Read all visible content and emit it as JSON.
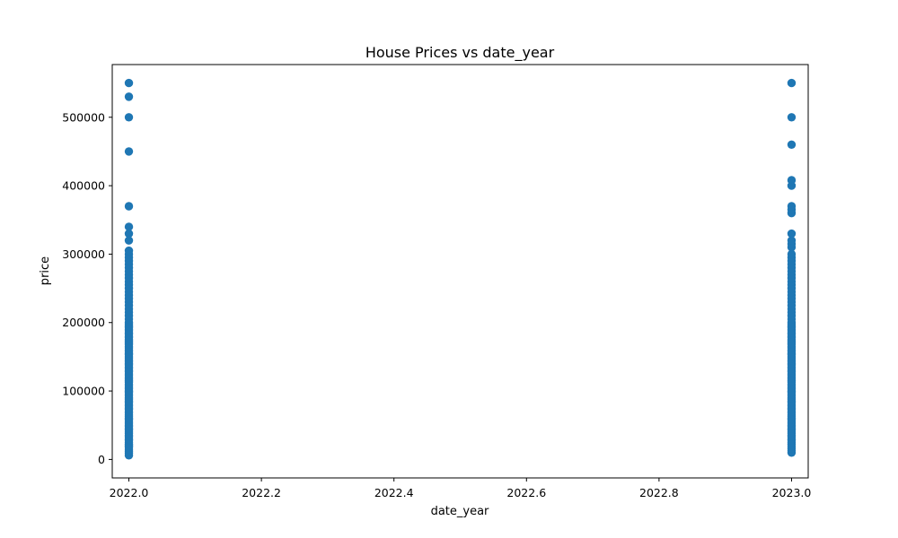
{
  "chart_data": {
    "type": "scatter",
    "title": "House Prices vs date_year",
    "xlabel": "date_year",
    "ylabel": "price",
    "xlim": [
      1.9749,
      3.0251
    ],
    "ylim": [
      -27000,
      577000
    ],
    "xticks": [
      {
        "value": 2.0,
        "label": "2022.0"
      },
      {
        "value": 2.2,
        "label": "2022.2"
      },
      {
        "value": 2.4,
        "label": "2022.4"
      },
      {
        "value": 2.6,
        "label": "2022.6"
      },
      {
        "value": 2.8,
        "label": "2022.8"
      },
      {
        "value": 3.0,
        "label": "2023.0"
      }
    ],
    "yticks": [
      {
        "value": 0,
        "label": "0"
      },
      {
        "value": 100000,
        "label": "100000"
      },
      {
        "value": 200000,
        "label": "200000"
      },
      {
        "value": 300000,
        "label": "300000"
      },
      {
        "value": 400000,
        "label": "400000"
      },
      {
        "value": 500000,
        "label": "500000"
      }
    ],
    "grid": false,
    "marker_color": "#1f77b4",
    "series": [
      {
        "x": 2022.0,
        "prices": [
          6000,
          9000,
          12000,
          15000,
          18000,
          20000,
          22000,
          25000,
          28000,
          30000,
          33000,
          35000,
          38000,
          40000,
          43000,
          45000,
          48000,
          50000,
          53000,
          55000,
          58000,
          60000,
          63000,
          65000,
          68000,
          70000,
          73000,
          75000,
          78000,
          80000,
          83000,
          85000,
          88000,
          90000,
          93000,
          95000,
          98000,
          100000,
          103000,
          105000,
          108000,
          110000,
          113000,
          115000,
          118000,
          120000,
          123000,
          125000,
          128000,
          130000,
          133000,
          135000,
          138000,
          140000,
          143000,
          145000,
          148000,
          150000,
          153000,
          155000,
          158000,
          160000,
          163000,
          165000,
          168000,
          170000,
          173000,
          175000,
          178000,
          180000,
          183000,
          185000,
          188000,
          190000,
          193000,
          195000,
          198000,
          200000,
          205000,
          210000,
          215000,
          220000,
          225000,
          230000,
          235000,
          240000,
          245000,
          250000,
          255000,
          260000,
          265000,
          270000,
          275000,
          280000,
          285000,
          290000,
          295000,
          300000,
          305000,
          320000,
          330000,
          340000,
          370000,
          450000,
          500000,
          530000,
          550000
        ]
      },
      {
        "x": 2023.0,
        "prices": [
          10000,
          13000,
          16000,
          19000,
          22000,
          25000,
          28000,
          30000,
          33000,
          35000,
          38000,
          40000,
          43000,
          45000,
          48000,
          50000,
          53000,
          55000,
          58000,
          60000,
          63000,
          65000,
          68000,
          70000,
          73000,
          75000,
          78000,
          80000,
          83000,
          85000,
          88000,
          90000,
          93000,
          95000,
          98000,
          100000,
          103000,
          105000,
          108000,
          110000,
          113000,
          115000,
          118000,
          120000,
          123000,
          125000,
          128000,
          130000,
          133000,
          135000,
          138000,
          140000,
          143000,
          145000,
          148000,
          150000,
          153000,
          155000,
          158000,
          160000,
          163000,
          165000,
          168000,
          170000,
          173000,
          175000,
          178000,
          180000,
          183000,
          185000,
          188000,
          190000,
          193000,
          195000,
          198000,
          200000,
          205000,
          210000,
          215000,
          220000,
          225000,
          230000,
          235000,
          240000,
          245000,
          250000,
          255000,
          260000,
          265000,
          270000,
          275000,
          280000,
          285000,
          290000,
          295000,
          300000,
          310000,
          315000,
          320000,
          330000,
          360000,
          365000,
          370000,
          400000,
          408000,
          460000,
          500000,
          550000
        ]
      }
    ]
  }
}
